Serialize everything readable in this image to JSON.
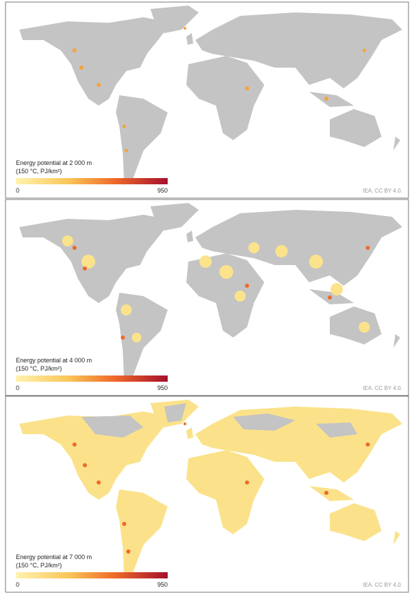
{
  "panels": [
    {
      "legend_title": "Energy potential at 2 000 m",
      "legend_unit": "(150 °C, PJ/km²)",
      "legend_min": 0,
      "legend_max": 950,
      "credit": "IEA. CC BY 4.0."
    },
    {
      "legend_title": "Energy potential at 4 000 m",
      "legend_unit": "(150 °C, PJ/km²)",
      "legend_min": 0,
      "legend_max": 950,
      "credit": "IEA. CC BY 4.0."
    },
    {
      "legend_title": "Energy potential at 7 000 m",
      "legend_unit": "(150 °C, PJ/km²)",
      "legend_min": 0,
      "legend_max": 950,
      "credit": "IEA. CC BY 4.0."
    }
  ]
}
